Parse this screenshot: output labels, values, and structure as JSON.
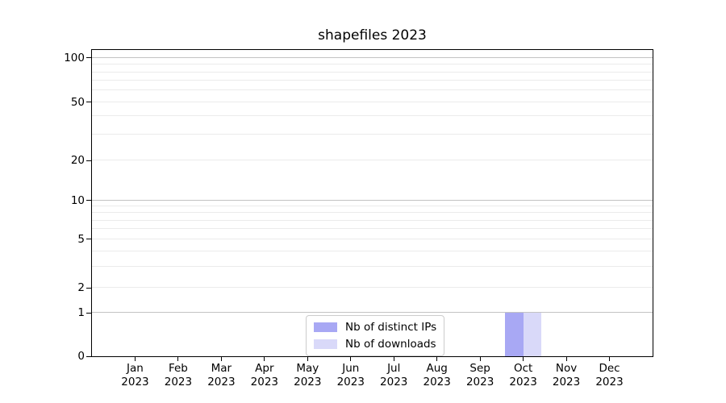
{
  "chart_data": {
    "type": "bar",
    "title": "shapefiles 2023",
    "categories": [
      "Jan",
      "Feb",
      "Mar",
      "Apr",
      "May",
      "Jun",
      "Jul",
      "Aug",
      "Sep",
      "Oct",
      "Nov",
      "Dec"
    ],
    "year_label": "2023",
    "series": [
      {
        "name": "Nb of distinct IPs",
        "color": "#a8a8f4",
        "values": [
          0,
          0,
          0,
          0,
          0,
          0,
          0,
          0,
          0,
          1,
          0,
          0
        ]
      },
      {
        "name": "Nb of downloads",
        "color": "#d9d9f9",
        "values": [
          0,
          0,
          0,
          0,
          0,
          0,
          0,
          0,
          0,
          1,
          0,
          0
        ]
      }
    ],
    "y_axis": {
      "scale": "symlog",
      "tick_values": [
        0,
        1,
        2,
        5,
        10,
        20,
        50,
        100
      ],
      "major_grid_values": [
        1,
        10,
        100
      ],
      "minor_grid_values": [
        2,
        3,
        4,
        5,
        6,
        7,
        8,
        9,
        20,
        30,
        40,
        50,
        60,
        70,
        80,
        90
      ],
      "range_top": 110
    },
    "grid": true,
    "legend_position": "lower center",
    "background_color": "#ffffff"
  }
}
